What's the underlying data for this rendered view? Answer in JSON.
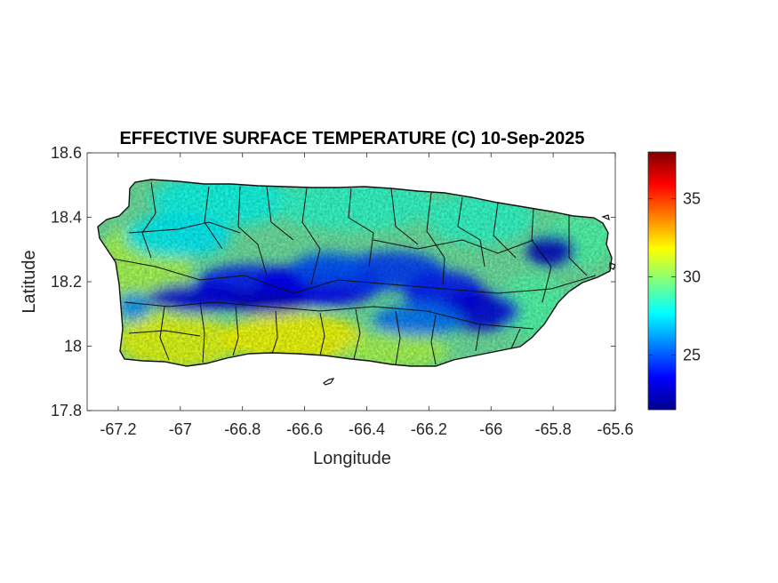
{
  "chart_data": {
    "type": "heatmap",
    "title": "EFFECTIVE SURFACE TEMPERATURE (C) 10-Sep-2025",
    "xlabel": "Longitude",
    "ylabel": "Latitude",
    "xlim": [
      -67.3,
      -65.6
    ],
    "ylim": [
      17.8,
      18.6
    ],
    "xticks": [
      -67.2,
      -67,
      -66.8,
      -66.6,
      -66.4,
      -66.2,
      -66,
      -65.8,
      -65.6
    ],
    "xtick_labels": [
      "-67.2",
      "-67",
      "-66.8",
      "-66.6",
      "-66.4",
      "-66.2",
      "-66",
      "-65.8",
      "-65.6"
    ],
    "yticks": [
      17.8,
      18,
      18.2,
      18.4,
      18.6
    ],
    "ytick_labels": [
      "17.8",
      "18",
      "18.2",
      "18.4",
      "18.6"
    ],
    "colorbar": {
      "colormap": "jet",
      "range": [
        21.5,
        38
      ],
      "ticks": [
        25,
        30,
        35
      ],
      "tick_labels": [
        "25",
        "30",
        "35"
      ]
    },
    "grid": false,
    "region": "Puerto Rico",
    "field_description_values": {
      "coast_typical": 29,
      "interior_mountains_min": 22,
      "south_coast_max": 32
    }
  }
}
